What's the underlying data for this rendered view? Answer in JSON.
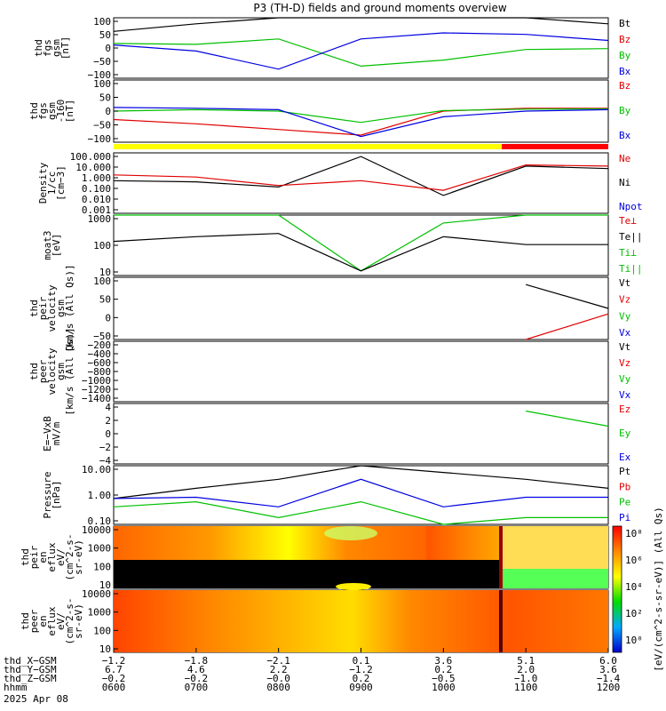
{
  "title": "P3 (TH-D) fields and ground moments overview",
  "panels": [
    {
      "id": "fgs",
      "ylabel": [
        "thd",
        "fgs",
        "gsm",
        "[nT]"
      ],
      "ticks": [
        "100",
        "50",
        "0",
        "−50",
        "−100"
      ],
      "legend": [
        {
          "t": "Bt",
          "c": "#000000"
        },
        {
          "t": "Bz",
          "c": "#e00000"
        },
        {
          "t": "By",
          "c": "#00c000"
        },
        {
          "t": "Bx",
          "c": "#0000e0"
        }
      ]
    },
    {
      "id": "fgs2",
      "ylabel": [
        "thd",
        "fgs",
        "gsm",
        "-160",
        "[nT]"
      ],
      "ticks": [
        "100",
        "50",
        "0",
        "−50",
        "−100"
      ],
      "legend": [
        {
          "t": "Bz",
          "c": "#e00000"
        },
        {
          "t": "By",
          "c": "#00c000"
        },
        {
          "t": "Bx",
          "c": "#0000e0"
        }
      ]
    },
    {
      "id": "dens",
      "ylabel": [
        "Density",
        "1/cc",
        "[cm−3]"
      ],
      "ticks": [
        "100.000",
        "10.000",
        "1.000",
        "0.100",
        "0.010",
        "0.001"
      ],
      "legend": [
        {
          "t": "Ne",
          "c": "#e00000"
        },
        {
          "t": "Ni",
          "c": "#000000"
        },
        {
          "t": "Npot",
          "c": "#0000e0"
        }
      ]
    },
    {
      "id": "temp",
      "ylabel": [
        "moat3",
        "[eV]"
      ],
      "ticks": [
        "1000",
        "100",
        "10"
      ],
      "legend": [
        {
          "t": "Te⊥",
          "c": "#e00000"
        },
        {
          "t": "Te||",
          "c": "#000000"
        },
        {
          "t": "Ti⊥",
          "c": "#00c000"
        },
        {
          "t": "Ti||",
          "c": "#00c000"
        }
      ]
    },
    {
      "id": "peir",
      "ylabel": [
        "thd",
        "peir",
        "velocity",
        "gsm",
        "[km/s (All Qs)]"
      ],
      "ticks": [
        "100",
        "50",
        "0",
        "−50"
      ],
      "legend": [
        {
          "t": "Vt",
          "c": "#000000"
        },
        {
          "t": "Vz",
          "c": "#e00000"
        },
        {
          "t": "Vy",
          "c": "#00c000"
        },
        {
          "t": "Vx",
          "c": "#0000e0"
        }
      ]
    },
    {
      "id": "peer",
      "ylabel": [
        "thd",
        "peer",
        "velocity",
        "gsm",
        "[km/s (All Qs)]"
      ],
      "ticks": [
        "−200",
        "−400",
        "−600",
        "−800",
        "−1000",
        "−1200",
        "−1400"
      ],
      "legend": [
        {
          "t": "Vt",
          "c": "#000000"
        },
        {
          "t": "Vz",
          "c": "#e00000"
        },
        {
          "t": "Vy",
          "c": "#00c000"
        },
        {
          "t": "Vx",
          "c": "#0000e0"
        }
      ]
    },
    {
      "id": "efield",
      "ylabel": [
        "E=−VxB",
        "mV/m"
      ],
      "ticks": [
        "4",
        "2",
        "0",
        "−2",
        "−4"
      ],
      "legend": [
        {
          "t": "Ez",
          "c": "#e00000"
        },
        {
          "t": "Ey",
          "c": "#00c000"
        },
        {
          "t": "Ex",
          "c": "#0000e0"
        }
      ]
    },
    {
      "id": "press",
      "ylabel": [
        "Pressure",
        "[nPa]"
      ],
      "ticks": [
        "10.00",
        "1.00",
        "0.10"
      ],
      "legend": [
        {
          "t": "Pt",
          "c": "#000000"
        },
        {
          "t": "Pb",
          "c": "#e00000"
        },
        {
          "t": "Pe",
          "c": "#00c000"
        },
        {
          "t": "Pi",
          "c": "#0000e0"
        }
      ]
    },
    {
      "id": "spec_i",
      "ylabel": [
        "thd",
        "peir",
        "en",
        "eflux",
        "eV/",
        "(cm^2-s-",
        "sr-eV)"
      ],
      "ticks": [
        "10000",
        "1000",
        "100",
        "10"
      ],
      "legend": []
    },
    {
      "id": "spec_e",
      "ylabel": [
        "thd",
        "peer",
        "en",
        "eflux",
        "eV/",
        "(cm^2-s-",
        "sr-eV)"
      ],
      "ticks": [
        "10000",
        "1000",
        "100",
        "10"
      ],
      "legend": []
    }
  ],
  "colorbar": {
    "ticks": [
      "10⁸",
      "10⁶",
      "10⁴",
      "10²",
      "10⁰"
    ],
    "label": "[eV/(cm^2-s-sr-eV)] (All Qs)"
  },
  "xaxis": {
    "rows": [
      {
        "label": "thd_X−GSM",
        "values": [
          "−1.2",
          "−1.8",
          "−2.1",
          "0.1",
          "3.6",
          "5.1",
          "6.0"
        ]
      },
      {
        "label": "thd_Y−GSM",
        "values": [
          "6.7",
          "4.6",
          "2.2",
          "−1.2",
          "0.2",
          "2.0",
          "3.6"
        ]
      },
      {
        "label": "thd_Z−GSM",
        "values": [
          "−0.2",
          "−0.2",
          "−0.0",
          "0.2",
          "−0.5",
          "−1.0",
          "−1.4"
        ]
      },
      {
        "label": "hhmm",
        "values": [
          "0600",
          "0700",
          "0800",
          "0900",
          "1000",
          "1100",
          "1200"
        ]
      }
    ],
    "date": "2025 Apr 08"
  },
  "chart_data": {
    "type": "line",
    "title": "P3 (TH-D) fields and ground moments overview",
    "x": [
      "0600",
      "0700",
      "0800",
      "0900",
      "1000",
      "1100",
      "1200"
    ],
    "xlabel": "hhmm",
    "series": [
      {
        "panel": "fgs",
        "name": "By",
        "values": [
          15,
          12,
          30,
          -60,
          -40,
          -5,
          -2
        ]
      },
      {
        "panel": "fgs",
        "name": "Bx",
        "values": [
          10,
          -10,
          -70,
          30,
          50,
          45,
          25
        ]
      },
      {
        "panel": "fgs",
        "name": "Bt",
        "values": [
          55,
          80,
          100,
          140,
          110,
          100,
          80
        ]
      },
      {
        "panel": "fgs2",
        "name": "Bz",
        "values": [
          -40,
          -55,
          -75,
          -95,
          -10,
          0,
          0
        ]
      },
      {
        "panel": "fgs2",
        "name": "By",
        "values": [
          -10,
          -5,
          -10,
          -50,
          -8,
          -3,
          -2
        ]
      },
      {
        "panel": "fgs2",
        "name": "Bx",
        "values": [
          3,
          0,
          -5,
          -100,
          -30,
          -10,
          -5
        ]
      },
      {
        "panel": "dens",
        "name": "Ni",
        "values": [
          0.5,
          0.4,
          0.15,
          50,
          0.03,
          8,
          5
        ]
      },
      {
        "panel": "dens",
        "name": "Ne",
        "values": [
          1.5,
          1,
          0.2,
          0.5,
          0.08,
          10,
          8
        ]
      },
      {
        "panel": "temp",
        "name": "Ti||",
        "values": [
          2000,
          2500,
          2000,
          15,
          1000,
          2500,
          3000
        ]
      },
      {
        "panel": "temp",
        "name": "Te||",
        "values": [
          200,
          300,
          400,
          15,
          300,
          150,
          150
        ]
      },
      {
        "panel": "peir",
        "name": "Vt",
        "values": [
          null,
          null,
          null,
          null,
          null,
          80,
          15
        ]
      },
      {
        "panel": "peir",
        "name": "Vz",
        "values": [
          null,
          null,
          null,
          null,
          null,
          -70,
          0
        ]
      },
      {
        "panel": "efield",
        "name": "Ey",
        "values": [
          null,
          null,
          null,
          null,
          null,
          3,
          1
        ]
      },
      {
        "panel": "press",
        "name": "Pt",
        "values": [
          0.7,
          2,
          5,
          20,
          10,
          5,
          2
        ]
      },
      {
        "panel": "press",
        "name": "Pi",
        "values": [
          0.7,
          0.8,
          0.3,
          5,
          0.3,
          0.8,
          0.8
        ]
      },
      {
        "panel": "press",
        "name": "Pe",
        "values": [
          0.3,
          0.5,
          0.1,
          0.5,
          0.05,
          0.1,
          0.1
        ]
      }
    ],
    "ylim_fgs": [
      -100,
      100
    ],
    "ylim_efield": [
      -4,
      4
    ],
    "grid": false
  }
}
